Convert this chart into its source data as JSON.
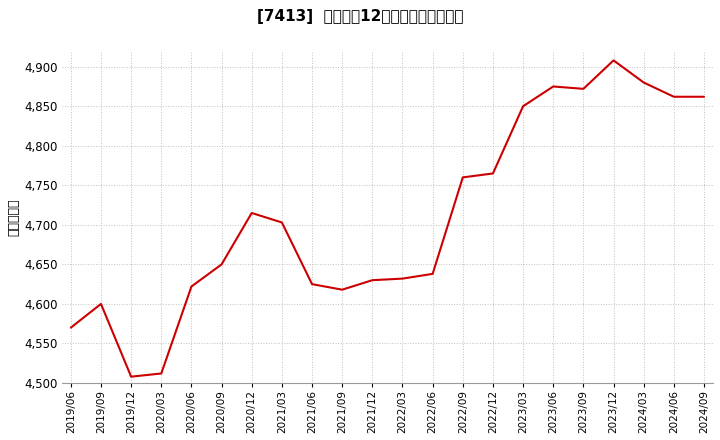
{
  "title": "[7413]  売上高の12か月移動合計の推移",
  "ylabel": "（百万円）",
  "line_color": "#cc0000",
  "background_color": "#ffffff",
  "grid_color": "#bbbbbb",
  "ylim": [
    4500,
    4920
  ],
  "yticks": [
    4500,
    4550,
    4600,
    4650,
    4700,
    4750,
    4800,
    4850,
    4900
  ],
  "x_labels": [
    "2019/06",
    "2019/09",
    "2019/12",
    "2020/03",
    "2020/06",
    "2020/09",
    "2020/12",
    "2021/03",
    "2021/06",
    "2021/09",
    "2021/12",
    "2022/03",
    "2022/06",
    "2022/09",
    "2022/12",
    "2023/03",
    "2023/06",
    "2023/09",
    "2023/12",
    "2024/03",
    "2024/06",
    "2024/09"
  ],
  "values": [
    4570,
    4600,
    4508,
    4512,
    4622,
    4650,
    4715,
    4703,
    4625,
    4618,
    4630,
    4632,
    4638,
    4760,
    4765,
    4850,
    4875,
    4872,
    4908,
    4880,
    4862,
    4862
  ]
}
